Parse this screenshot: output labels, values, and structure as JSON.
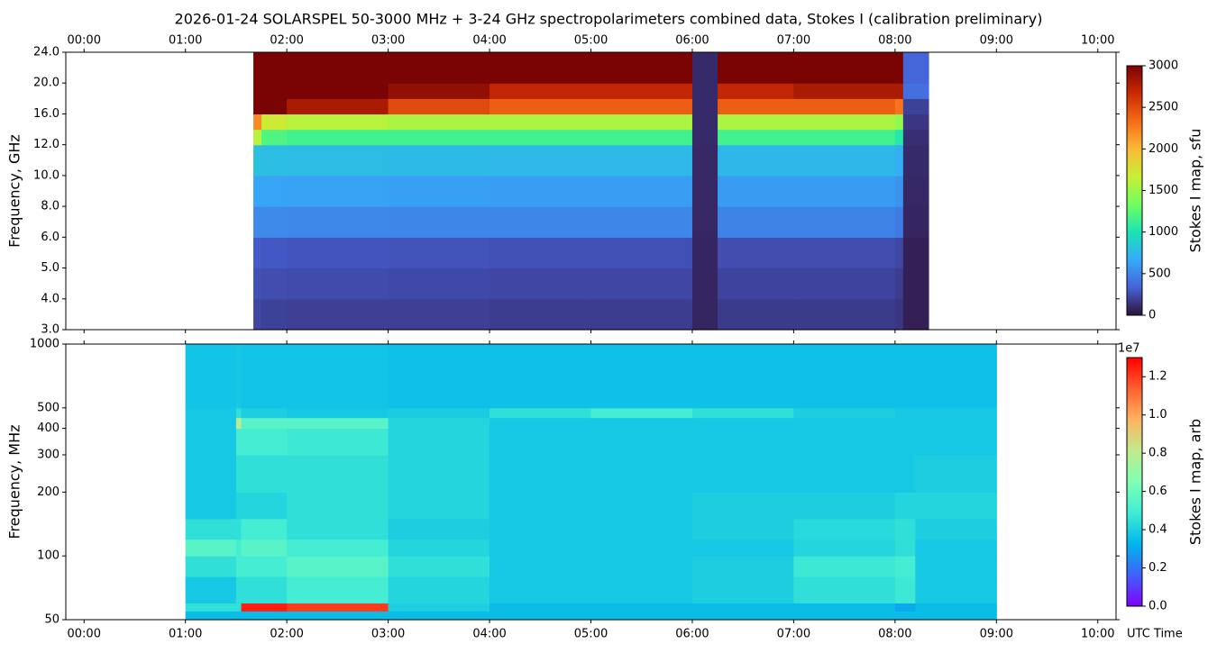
{
  "title": "2026-01-24  SOLARSPEL  50-3000 MHz  +  3-24 GHz  spectropolarimeters combined data,  Stokes I  (calibration preliminary)",
  "chart_data": [
    {
      "type": "heatmap",
      "ylabel": "Frequency, GHz",
      "yscale": "tick-index",
      "xlim": [
        -0.18,
        10.18
      ],
      "xticks": [
        {
          "value": 0,
          "label": "00:00"
        },
        {
          "value": 1,
          "label": "01:00"
        },
        {
          "value": 2,
          "label": "02:00"
        },
        {
          "value": 3,
          "label": "03:00"
        },
        {
          "value": 4,
          "label": "04:00"
        },
        {
          "value": 5,
          "label": "05:00"
        },
        {
          "value": 6,
          "label": "06:00"
        },
        {
          "value": 7,
          "label": "07:00"
        },
        {
          "value": 8,
          "label": "08:00"
        },
        {
          "value": 9,
          "label": "09:00"
        },
        {
          "value": 10,
          "label": "10:00"
        }
      ],
      "xtick_position": "top",
      "ylim": [
        3,
        24
      ],
      "yticks": [
        {
          "value": 3,
          "label": "3.0"
        },
        {
          "value": 4,
          "label": "4.0"
        },
        {
          "value": 5,
          "label": "5.0"
        },
        {
          "value": 6,
          "label": "6.0"
        },
        {
          "value": 8,
          "label": "8.0"
        },
        {
          "value": 10,
          "label": "10.0"
        },
        {
          "value": 12,
          "label": "12.0"
        },
        {
          "value": 16,
          "label": "16.0"
        },
        {
          "value": 20,
          "label": "20.0"
        },
        {
          "value": 24,
          "label": "24.0"
        }
      ],
      "x_edges": [
        1.67,
        1.75,
        2.0,
        3.0,
        4.0,
        5.0,
        6.0,
        6.25,
        7.0,
        8.0,
        8.08,
        8.33
      ],
      "y_edges": [
        3,
        4,
        5,
        6,
        8,
        10,
        12,
        14,
        16,
        18,
        20,
        24
      ],
      "z": [
        [
          220,
          200,
          190,
          190,
          180,
          180,
          80,
          170,
          170,
          150,
          60
        ],
        [
          260,
          250,
          240,
          230,
          220,
          220,
          80,
          210,
          210,
          180,
          60
        ],
        [
          300,
          290,
          280,
          270,
          260,
          260,
          80,
          250,
          250,
          220,
          60
        ],
        [
          520,
          520,
          510,
          500,
          500,
          500,
          90,
          490,
          490,
          450,
          80
        ],
        [
          650,
          640,
          630,
          620,
          610,
          610,
          90,
          600,
          600,
          560,
          90
        ],
        [
          800,
          780,
          770,
          760,
          750,
          750,
          90,
          740,
          740,
          700,
          100
        ],
        [
          1600,
          1200,
          1150,
          1150,
          1150,
          1150,
          100,
          1150,
          1150,
          1050,
          120
        ],
        [
          2200,
          1700,
          1600,
          1550,
          1550,
          1550,
          100,
          1550,
          1550,
          1450,
          150
        ],
        [
          3000,
          3000,
          2800,
          2500,
          2400,
          2400,
          100,
          2400,
          2400,
          2300,
          200
        ],
        [
          3000,
          3000,
          3000,
          2900,
          2700,
          2700,
          100,
          2700,
          2800,
          2800,
          400
        ],
        [
          3000,
          3000,
          3000,
          3000,
          3000,
          3000,
          100,
          3000,
          3000,
          3000,
          350
        ]
      ],
      "clim": [
        0,
        3000
      ],
      "cticks": [
        0,
        500,
        1000,
        1500,
        2000,
        2500,
        3000
      ],
      "clabel": "Stokes I map, sfu",
      "colormap": [
        "#30123b",
        "#4662d7",
        "#36aaf9",
        "#1ae4b6",
        "#72fe5e",
        "#c8ef34",
        "#faba39",
        "#f66b19",
        "#ca2a04",
        "#7a0403"
      ]
    },
    {
      "type": "heatmap",
      "ylabel": "Frequency, MHz",
      "xlabel": "UTC Time",
      "yscale": "log",
      "xlim": [
        -0.18,
        10.18
      ],
      "xticks": [
        {
          "value": 0,
          "label": "00:00"
        },
        {
          "value": 1,
          "label": "01:00"
        },
        {
          "value": 2,
          "label": "02:00"
        },
        {
          "value": 3,
          "label": "03:00"
        },
        {
          "value": 4,
          "label": "04:00"
        },
        {
          "value": 5,
          "label": "05:00"
        },
        {
          "value": 6,
          "label": "06:00"
        },
        {
          "value": 7,
          "label": "07:00"
        },
        {
          "value": 8,
          "label": "08:00"
        },
        {
          "value": 9,
          "label": "09:00"
        },
        {
          "value": 10,
          "label": "10:00"
        }
      ],
      "xtick_position": "bottom",
      "ylim": [
        50,
        1000
      ],
      "yticks": [
        50,
        100,
        200,
        300,
        400,
        500,
        1000
      ],
      "x_edges": [
        1.0,
        1.5,
        1.55,
        2.0,
        3.0,
        4.0,
        5.0,
        6.0,
        7.0,
        8.0,
        8.2,
        9.0
      ],
      "y_edges": [
        50,
        55,
        60,
        80,
        100,
        120,
        150,
        200,
        300,
        400,
        450,
        500,
        1000
      ],
      "z": [
        [
          3500000,
          3500000,
          3500000,
          3500000,
          3500000,
          3500000,
          3500000,
          3500000,
          3500000,
          3500000,
          3500000
        ],
        [
          4500000,
          4500000,
          12500000,
          12000000,
          4000000,
          3500000,
          3500000,
          3500000,
          3500000,
          3000000,
          3500000
        ],
        [
          3800000,
          4500000,
          4500000,
          5000000,
          4200000,
          3800000,
          3800000,
          4000000,
          4500000,
          4800000,
          3800000
        ],
        [
          4500000,
          5000000,
          5000000,
          5500000,
          4500000,
          3800000,
          3800000,
          4000000,
          4800000,
          5000000,
          3800000
        ],
        [
          5500000,
          5000000,
          5500000,
          5000000,
          4200000,
          3800000,
          3800000,
          3800000,
          4200000,
          4500000,
          3800000
        ],
        [
          4500000,
          4500000,
          5000000,
          4500000,
          4000000,
          3800000,
          3800000,
          4000000,
          4300000,
          4500000,
          4000000
        ],
        [
          3800000,
          4200000,
          4200000,
          4500000,
          4200000,
          3800000,
          3800000,
          4000000,
          4000000,
          4200000,
          4200000
        ],
        [
          3800000,
          4500000,
          4500000,
          4500000,
          4200000,
          3800000,
          3800000,
          3800000,
          3800000,
          3800000,
          4000000
        ],
        [
          3800000,
          5000000,
          5000000,
          4800000,
          4200000,
          3800000,
          3800000,
          3800000,
          3800000,
          3800000,
          3800000
        ],
        [
          3800000,
          8000000,
          5500000,
          5500000,
          4200000,
          3800000,
          3800000,
          3800000,
          3800000,
          3800000,
          3800000
        ],
        [
          3800000,
          4500000,
          4000000,
          3800000,
          3900000,
          4500000,
          5000000,
          4500000,
          4000000,
          3800000,
          3800000
        ],
        [
          3700000,
          3800000,
          3700000,
          3700000,
          3600000,
          3600000,
          3600000,
          3600000,
          3600000,
          3600000,
          3600000
        ]
      ],
      "clim": [
        0,
        13000000
      ],
      "cticks": [
        {
          "value": 0,
          "label": "0.0"
        },
        {
          "value": 2000000,
          "label": "0.2"
        },
        {
          "value": 4000000,
          "label": "0.4"
        },
        {
          "value": 6000000,
          "label": "0.6"
        },
        {
          "value": 8000000,
          "label": "0.8"
        },
        {
          "value": 10000000,
          "label": "1.0"
        },
        {
          "value": 12000000,
          "label": "1.2"
        }
      ],
      "coffset_label": "1e7",
      "clabel": "Stokes I map, arb",
      "colormap": [
        "#8000ff",
        "#4062fa",
        "#00b5eb",
        "#40ecd4",
        "#80ffb4",
        "#c0eb8d",
        "#ffb360",
        "#ff6030",
        "#ff0000"
      ]
    }
  ]
}
